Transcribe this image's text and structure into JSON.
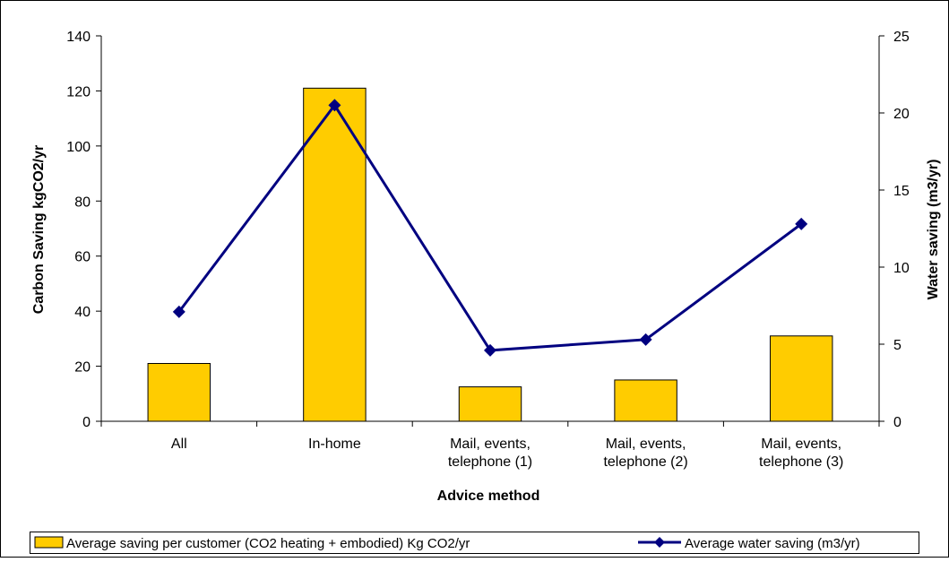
{
  "chart_data": {
    "type": "bar",
    "title": "",
    "xlabel": "Advice method",
    "ylabel": "Carbon Saving kgCO2/yr",
    "y2label": "Water saving (m3/yr)",
    "categories": [
      [
        "All"
      ],
      [
        "In-home"
      ],
      [
        "Mail, events,",
        "telephone (1)"
      ],
      [
        "Mail, events,",
        "telephone (2)"
      ],
      [
        "Mail, events,",
        "telephone (3)"
      ]
    ],
    "ylim": [
      0,
      140
    ],
    "yticks": [
      0,
      20,
      40,
      60,
      80,
      100,
      120,
      140
    ],
    "y2lim": [
      0,
      25
    ],
    "y2ticks": [
      0,
      5,
      10,
      15,
      20,
      25
    ],
    "grid": false,
    "legend_position": "bottom",
    "series": [
      {
        "name": "Average saving per customer (CO2 heating + embodied) Kg CO2/yr",
        "type": "bar",
        "axis": "left",
        "color": "#FFCC00",
        "values": [
          21,
          121,
          12.5,
          15,
          31
        ]
      },
      {
        "name": "Average water saving (m3/yr)",
        "type": "line",
        "axis": "right",
        "color": "#000080",
        "marker": "diamond",
        "values": [
          7.1,
          20.5,
          4.6,
          5.3,
          12.8
        ]
      }
    ]
  }
}
